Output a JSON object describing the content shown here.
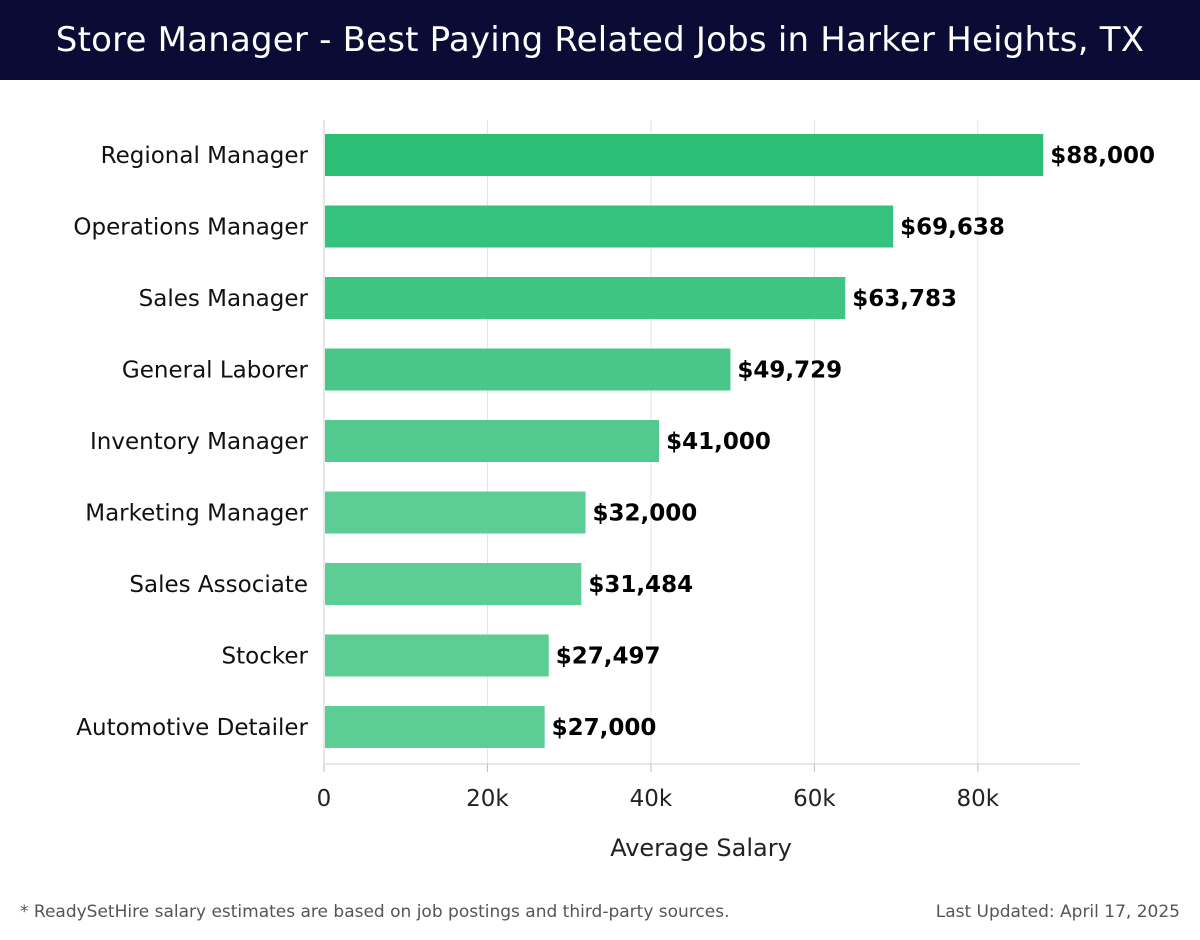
{
  "header": {
    "title": "Store Manager - Best Paying Related Jobs in Harker Heights, TX"
  },
  "chart_data": {
    "type": "bar",
    "orientation": "horizontal",
    "categories": [
      "Regional Manager",
      "Operations Manager",
      "Sales Manager",
      "General Laborer",
      "Inventory Manager",
      "Marketing Manager",
      "Sales Associate",
      "Stocker",
      "Automotive Detailer"
    ],
    "values": [
      88000,
      69638,
      63783,
      49729,
      41000,
      32000,
      31484,
      27497,
      27000
    ],
    "value_labels": [
      "$88,000",
      "$69,638",
      "$63,783",
      "$49,729",
      "$41,000",
      "$32,000",
      "$31,484",
      "$27,497",
      "$27,000"
    ],
    "xlabel": "Average Salary",
    "ylabel": "",
    "xlim": [
      0,
      92500
    ],
    "x_ticks": [
      0,
      20000,
      40000,
      60000,
      80000
    ],
    "x_tick_labels": [
      "0",
      "20k",
      "40k",
      "60k",
      "80k"
    ],
    "grid": true,
    "bar_color_top": "#2bbf76",
    "bar_color_bottom": "#5ccd95"
  },
  "footer": {
    "note": "* ReadySetHire salary estimates are based on job postings and third-party sources.",
    "updated": "Last Updated: April 17, 2025"
  }
}
